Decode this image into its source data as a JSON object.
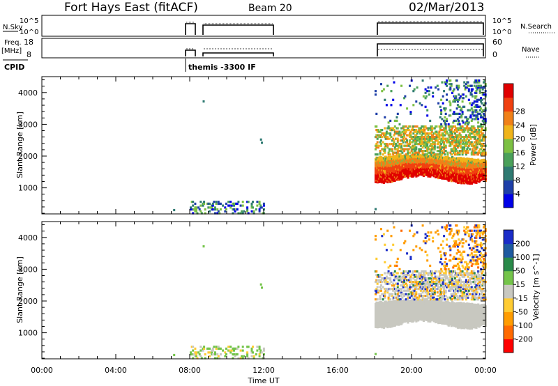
{
  "header": {
    "title": "Fort Hays East (fitACF)",
    "beam": "Beam 20",
    "date": "02/Mar/2013"
  },
  "status_panels": {
    "nsky_label": "N.Sky",
    "nsky_ticks": [
      "10^5",
      "10^0"
    ],
    "nsearch_label": "N.Search",
    "nsearch_ticks": [
      "10^5",
      "10^0"
    ],
    "freq_label": "Freq.",
    "freq_unit": "[MHz]",
    "freq_ticks": [
      "18",
      "8"
    ],
    "nave_label": "Nave",
    "nave_ticks": [
      "60",
      "0"
    ],
    "cpid_label": "CPID",
    "cpid_text": "themis -3300 IF"
  },
  "colors": {
    "power_scale": [
      "#0000e8",
      "#1e3fa8",
      "#2f7a72",
      "#4aa05a",
      "#7cc043",
      "#f0b41a",
      "#f08018",
      "#f04010",
      "#e00000"
    ],
    "velocity_scale": [
      "#ff0000",
      "#ff6a00",
      "#ff9c00",
      "#ffcc33",
      "#c8c8c0",
      "#74c44a",
      "#2a8a4a",
      "#1e5aa0",
      "#1a2cc8"
    ],
    "ground_scatter": "#c8c8c0"
  },
  "chart_data": [
    {
      "type": "heatmap",
      "name": "power",
      "xlabel": "",
      "ylabel": "Slant Range [km]",
      "xlim": [
        "00:00",
        "00:00"
      ],
      "ylim": [
        180,
        4500
      ],
      "y_ticks": [
        "1000",
        "2000",
        "3000",
        "4000"
      ],
      "colorbar_label": "Power [dB]",
      "colorbar_ticks": [
        "4",
        "8",
        "12",
        "16",
        "20",
        "24",
        "28"
      ],
      "data_intervals_ut": [
        [
          "07:00",
          "07:40"
        ],
        [
          "08:00",
          "12:00"
        ],
        [
          "18:00",
          "24:00"
        ]
      ],
      "features": [
        {
          "time_ut": [
            "18:00",
            "24:00"
          ],
          "range_km": [
            1200,
            2100
          ],
          "power_db": "20-30"
        },
        {
          "time_ut": [
            "18:00",
            "24:00"
          ],
          "range_km": [
            2100,
            3000
          ],
          "power_db": "8-20"
        },
        {
          "time_ut": [
            "18:00",
            "24:00"
          ],
          "range_km": [
            3000,
            4400
          ],
          "power_db": "4-16"
        },
        {
          "time_ut": [
            "08:00",
            "12:00"
          ],
          "range_km": [
            180,
            600
          ],
          "power_db": "4-14"
        }
      ]
    },
    {
      "type": "heatmap",
      "name": "velocity",
      "xlabel": "Time UT",
      "ylabel": "Slant Range [km]",
      "xlim": [
        "00:00",
        "00:00"
      ],
      "ylim": [
        180,
        4500
      ],
      "x_ticks": [
        "00:00",
        "04:00",
        "08:00",
        "12:00",
        "16:00",
        "20:00",
        "00:00"
      ],
      "y_ticks": [
        "1000",
        "2000",
        "3000",
        "4000"
      ],
      "colorbar_label": "Velocity [m s^-1]",
      "colorbar_ticks": [
        "200",
        "100",
        "50",
        "15",
        "-15",
        "-50",
        "-100",
        "-200"
      ],
      "data_intervals_ut": [
        [
          "07:00",
          "07:40"
        ],
        [
          "08:00",
          "12:00"
        ],
        [
          "18:00",
          "24:00"
        ]
      ],
      "features": [
        {
          "time_ut": [
            "18:00",
            "24:00"
          ],
          "range_km": [
            1200,
            2100
          ],
          "velocity": "ground scatter"
        },
        {
          "time_ut": [
            "18:00",
            "24:00"
          ],
          "range_km": [
            2100,
            3000
          ],
          "velocity": "-100 to 50"
        },
        {
          "time_ut": [
            "21:00",
            "24:00"
          ],
          "range_km": [
            3000,
            4400
          ],
          "velocity": "-50 to -15"
        }
      ]
    }
  ]
}
